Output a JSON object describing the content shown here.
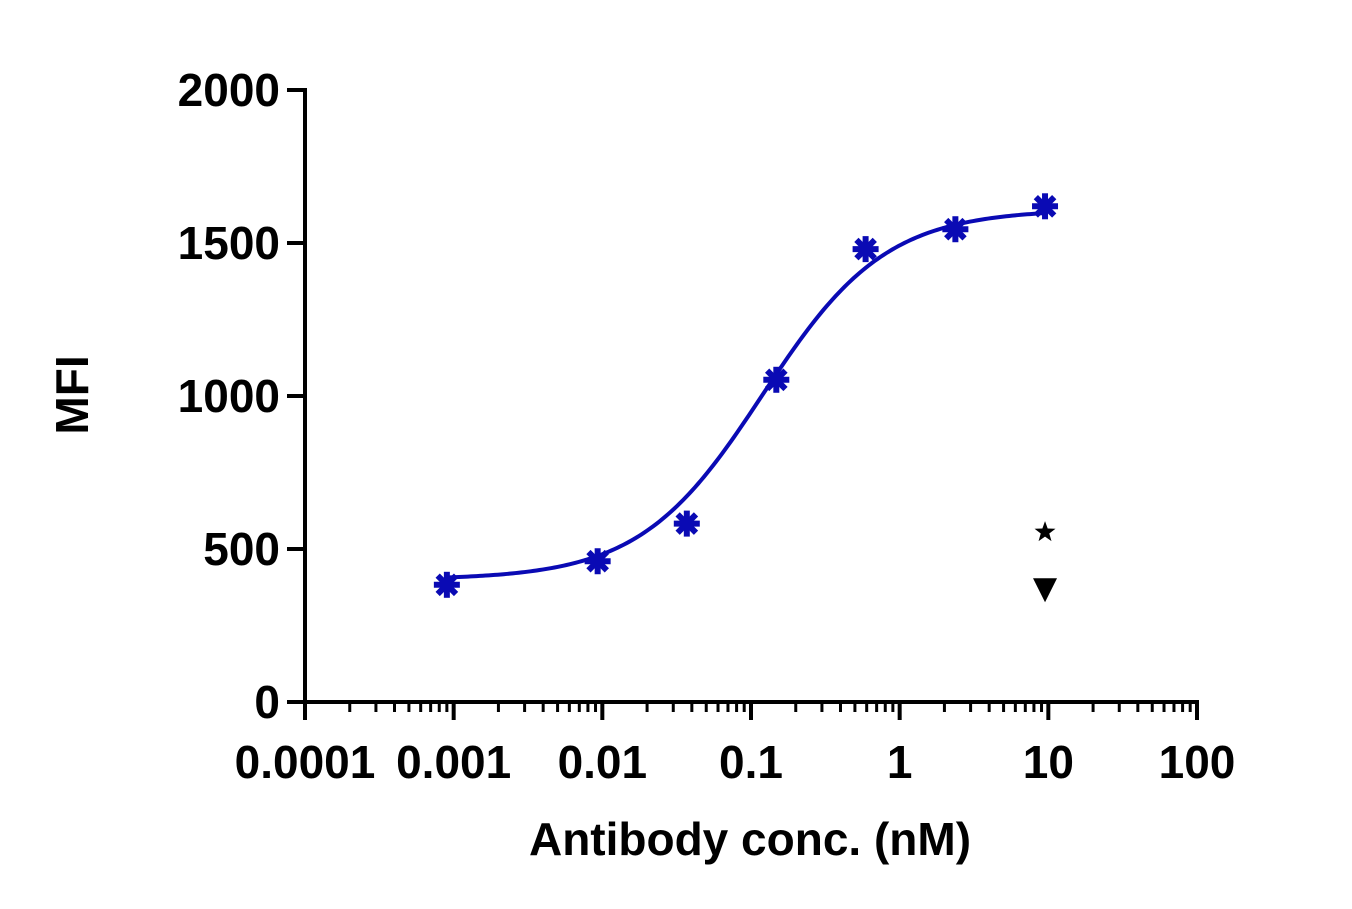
{
  "chart_data": {
    "type": "scatter",
    "xlabel": "Antibody conc. (nM)",
    "ylabel": "MFI",
    "x_scale": "log",
    "xlim": [
      0.0001,
      100
    ],
    "ylim": [
      0,
      2000
    ],
    "x_ticks": [
      {
        "value": 0.0001,
        "label": "0.0001"
      },
      {
        "value": 0.001,
        "label": "0.001"
      },
      {
        "value": 0.01,
        "label": "0.01"
      },
      {
        "value": 0.1,
        "label": "0.1"
      },
      {
        "value": 1,
        "label": "1"
      },
      {
        "value": 10,
        "label": "10"
      },
      {
        "value": 100,
        "label": "100"
      }
    ],
    "y_ticks": [
      {
        "value": 0,
        "label": "0"
      },
      {
        "value": 500,
        "label": "500"
      },
      {
        "value": 1000,
        "label": "1000"
      },
      {
        "value": 1500,
        "label": "1500"
      },
      {
        "value": 2000,
        "label": "2000"
      }
    ],
    "grid": false,
    "legend": "none",
    "series": [
      {
        "marker": "asterisk",
        "color": "#0a0ab4",
        "fit": "4PL sigmoidal",
        "points": [
          {
            "x": 0.0009,
            "y": 383
          },
          {
            "x": 0.0093,
            "y": 460
          },
          {
            "x": 0.037,
            "y": 583
          },
          {
            "x": 0.148,
            "y": 1053
          },
          {
            "x": 0.59,
            "y": 1480
          },
          {
            "x": 2.37,
            "y": 1545
          },
          {
            "x": 9.5,
            "y": 1620
          }
        ],
        "fit_params": {
          "bottom": 400,
          "top": 1610,
          "ec50": 0.12,
          "hill": 1.05
        }
      },
      {
        "marker": "star",
        "color": "#000000",
        "points": [
          {
            "x": 9.5,
            "y": 555
          }
        ]
      },
      {
        "marker": "triangle-down",
        "color": "#000000",
        "points": [
          {
            "x": 9.5,
            "y": 365
          }
        ]
      }
    ]
  }
}
